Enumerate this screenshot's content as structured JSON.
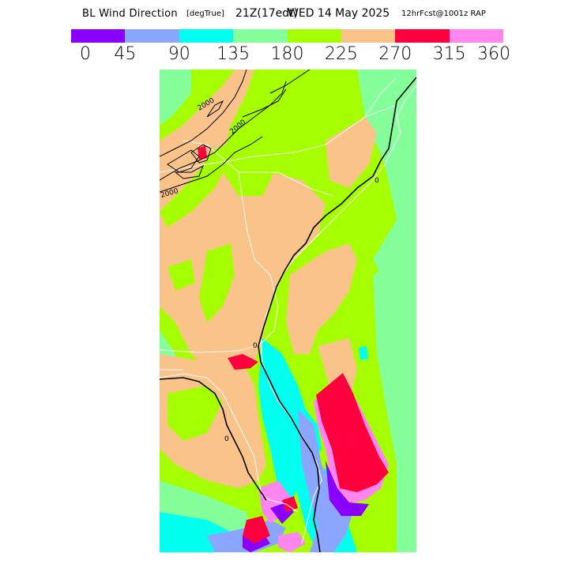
{
  "title": {
    "main": "BL Wind Direction",
    "unit": "[degTrue]",
    "time": "21Z(17edt)",
    "date": "WED 14 May 2025",
    "forecast": "12hrFcst@1001z RAP"
  },
  "legend": {
    "bins": [
      {
        "color": "#8a00ff"
      },
      {
        "color": "#8aa6ff"
      },
      {
        "color": "#00ffef"
      },
      {
        "color": "#85ff9a"
      },
      {
        "color": "#a6ff00"
      },
      {
        "color": "#f9c38a"
      },
      {
        "color": "#ff003f"
      },
      {
        "color": "#ff85ef"
      }
    ],
    "ticks": [
      "0",
      "45",
      "90",
      "135",
      "180",
      "225",
      "270",
      "315",
      "360"
    ]
  },
  "map": {
    "contour_labels": [
      "2000",
      "2000",
      "2000"
    ],
    "coast_markers": [
      "0",
      "0",
      "0"
    ]
  }
}
